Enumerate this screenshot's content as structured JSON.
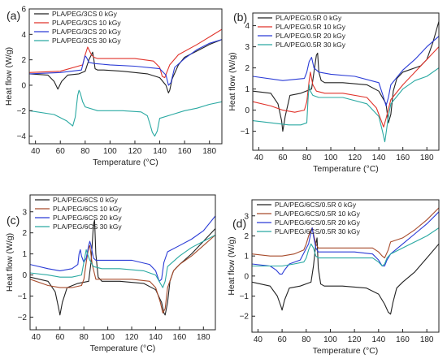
{
  "figure": {
    "panels": [
      "a",
      "b",
      "c",
      "d"
    ]
  },
  "chart_data": [
    {
      "panel_label": "(a)",
      "type": "line",
      "xlabel": "Temperature (°C)",
      "ylabel": "Heat flow (W/g)",
      "xlim": [
        35,
        190
      ],
      "ylim": [
        -4.6,
        6
      ],
      "xticks": [
        40,
        60,
        80,
        100,
        120,
        140,
        160,
        180
      ],
      "yticks": [
        -4,
        -2,
        0,
        2,
        4,
        6
      ],
      "legend_position": "top-left",
      "grid": false,
      "series": [
        {
          "name": "PLA/PEG/3CS 0 kGy",
          "color": "#222222",
          "x": [
            35,
            50,
            55,
            58,
            61,
            66,
            75,
            80,
            83,
            85,
            86,
            87,
            88,
            90,
            95,
            110,
            130,
            140,
            145,
            147,
            148,
            150,
            155,
            160,
            170,
            180,
            190
          ],
          "y": [
            0.9,
            0.8,
            0.3,
            -0.3,
            0.3,
            0.8,
            0.9,
            1.1,
            2.0,
            2.4,
            2.6,
            2.0,
            1.3,
            1.2,
            1.2,
            1.1,
            0.9,
            0.6,
            0.0,
            -0.6,
            -0.4,
            0.5,
            1.6,
            2.2,
            2.7,
            3.2,
            3.6
          ]
        },
        {
          "name": "PLA/PEG/3CS 10 kGy",
          "color": "#e0332b",
          "x": [
            35,
            60,
            78,
            80,
            82,
            83,
            85,
            87,
            90,
            100,
            120,
            135,
            140,
            142,
            144,
            148,
            155,
            170,
            180,
            190
          ],
          "y": [
            1.0,
            1.1,
            1.6,
            2.4,
            3.0,
            2.8,
            2.4,
            2.2,
            2.1,
            2.1,
            2.1,
            1.9,
            1.4,
            0.7,
            0.6,
            1.6,
            2.4,
            3.2,
            3.8,
            4.4
          ]
        },
        {
          "name": "PLA/PEG/3CS 20 kGy",
          "color": "#2a3bd6",
          "x": [
            35,
            60,
            77,
            79,
            80,
            81,
            83,
            88,
            100,
            120,
            140,
            145,
            147,
            149,
            152,
            160,
            170,
            180,
            190
          ],
          "y": [
            0.9,
            1.0,
            1.2,
            2.0,
            2.3,
            2.2,
            1.8,
            1.7,
            1.6,
            1.5,
            1.3,
            0.8,
            0.0,
            0.2,
            1.4,
            2.1,
            2.8,
            3.3,
            3.6
          ]
        },
        {
          "name": "PLA/PEG/3CS 30 kGy",
          "color": "#2aa9a2",
          "x": [
            35,
            55,
            65,
            70,
            72,
            74,
            75,
            76,
            78,
            80,
            90,
            110,
            125,
            130,
            132,
            134,
            136,
            138,
            140,
            150,
            160,
            170,
            180,
            190
          ],
          "y": [
            -2.0,
            -2.3,
            -2.8,
            -3.2,
            -2.5,
            -0.8,
            -0.4,
            -0.6,
            -1.3,
            -1.7,
            -2.0,
            -2.0,
            -2.1,
            -2.4,
            -3.0,
            -3.7,
            -4.0,
            -3.6,
            -2.6,
            -2.3,
            -2.0,
            -1.8,
            -1.5,
            -1.3
          ]
        }
      ]
    },
    {
      "panel_label": "(b)",
      "type": "line",
      "xlabel": "Temperature (°C)",
      "ylabel": "Heat flow (W/g)",
      "xlim": [
        35,
        190
      ],
      "ylim": [
        -1.9,
        4.6
      ],
      "xticks": [
        40,
        60,
        80,
        100,
        120,
        140,
        160,
        180
      ],
      "yticks": [
        -1,
        0,
        1,
        2,
        3,
        4
      ],
      "legend_position": "top-left",
      "grid": false,
      "series": [
        {
          "name": "PLA/PEG/0.5R 0 kGy",
          "color": "#222222",
          "x": [
            35,
            50,
            56,
            59,
            60,
            62,
            66,
            75,
            84,
            86,
            88,
            89,
            90,
            92,
            95,
            110,
            130,
            140,
            146,
            148,
            150,
            152,
            155,
            160,
            170,
            175,
            180,
            185,
            190
          ],
          "y": [
            0.9,
            0.8,
            0.3,
            -0.5,
            -1.0,
            -0.3,
            0.7,
            0.8,
            1.0,
            1.8,
            2.6,
            2.7,
            1.8,
            1.4,
            1.3,
            1.3,
            1.2,
            0.9,
            0.3,
            -0.6,
            -0.2,
            0.9,
            1.5,
            1.8,
            2.0,
            2.1,
            2.4,
            3.2,
            4.2
          ]
        },
        {
          "name": "PLA/PEG/0.5R 10 kGy",
          "color": "#e0332b",
          "x": [
            35,
            50,
            60,
            70,
            78,
            80,
            82,
            83,
            85,
            88,
            95,
            110,
            130,
            138,
            142,
            144,
            146,
            150,
            160,
            170,
            180,
            190
          ],
          "y": [
            0.4,
            0.2,
            0.0,
            -0.1,
            0.0,
            0.4,
            1.4,
            1.8,
            1.2,
            0.9,
            0.8,
            0.8,
            0.6,
            0.1,
            -0.5,
            -0.8,
            -0.4,
            0.5,
            1.2,
            1.8,
            2.4,
            3.0
          ]
        },
        {
          "name": "PLA/PEG/0.5R 20 kGy",
          "color": "#2a3bd6",
          "x": [
            35,
            60,
            78,
            80,
            82,
            84,
            86,
            90,
            100,
            120,
            140,
            144,
            146,
            148,
            150,
            160,
            170,
            180,
            190
          ],
          "y": [
            1.6,
            1.4,
            1.5,
            1.8,
            2.3,
            2.5,
            2.0,
            1.8,
            1.7,
            1.6,
            1.3,
            0.6,
            0.2,
            0.6,
            1.2,
            1.9,
            2.4,
            3.0,
            3.5
          ]
        },
        {
          "name": "PLA/PEG/0.5R 30 kGy",
          "color": "#2aa9a2",
          "x": [
            35,
            50,
            65,
            75,
            80,
            81,
            82,
            83,
            85,
            90,
            110,
            130,
            140,
            143,
            145,
            146,
            148,
            150,
            160,
            170,
            180,
            190
          ],
          "y": [
            -0.5,
            -0.6,
            -0.7,
            -0.7,
            -0.6,
            0.5,
            1.2,
            0.9,
            0.7,
            0.6,
            0.6,
            0.3,
            -0.3,
            -1.0,
            -1.5,
            -1.1,
            -0.3,
            0.3,
            1.0,
            1.4,
            1.6,
            2.0
          ]
        }
      ]
    },
    {
      "panel_label": "(c)",
      "type": "line",
      "xlabel": "Temperature (°C)",
      "ylabel": "Heat flow (W/g)",
      "xlim": [
        35,
        190
      ],
      "ylim": [
        -2.6,
        3.8
      ],
      "xticks": [
        40,
        60,
        80,
        100,
        120,
        140,
        160,
        180
      ],
      "yticks": [
        -2,
        -1,
        0,
        1,
        2,
        3
      ],
      "legend_position": "top-left",
      "grid": false,
      "series": [
        {
          "name": "PLA/PEG/6CS 0 kGy",
          "color": "#222222",
          "x": [
            35,
            50,
            56,
            59,
            60,
            62,
            66,
            75,
            84,
            86,
            88,
            89,
            90,
            92,
            95,
            110,
            130,
            140,
            145,
            147,
            148,
            150,
            152,
            155,
            160,
            170,
            180,
            190
          ],
          "y": [
            -0.1,
            -0.3,
            -0.8,
            -1.6,
            -1.9,
            -1.3,
            -0.6,
            -0.4,
            -0.3,
            0.6,
            2.4,
            2.6,
            1.0,
            -0.1,
            -0.3,
            -0.3,
            -0.4,
            -0.7,
            -1.3,
            -1.8,
            -1.9,
            -1.3,
            -0.3,
            0.2,
            0.5,
            1.0,
            1.6,
            2.2
          ]
        },
        {
          "name": "PLA/PEG/6CS 10 kGy",
          "color": "#a64a2a",
          "x": [
            35,
            50,
            60,
            70,
            78,
            80,
            82,
            84,
            85,
            87,
            90,
            100,
            120,
            135,
            140,
            144,
            146,
            148,
            150,
            155,
            160,
            170,
            180,
            190
          ],
          "y": [
            -0.2,
            -0.5,
            -0.6,
            -0.6,
            -0.5,
            -0.2,
            0.6,
            1.3,
            1.4,
            0.5,
            -0.2,
            -0.2,
            -0.2,
            -0.3,
            -0.6,
            -1.3,
            -1.8,
            -1.6,
            -0.6,
            0.2,
            0.5,
            0.9,
            1.4,
            1.9
          ]
        },
        {
          "name": "PLA/PEG/6CS 20 kGy",
          "color": "#2a3bd6",
          "x": [
            35,
            50,
            60,
            70,
            75,
            76,
            77,
            78,
            80,
            82,
            84,
            85,
            86,
            88,
            90,
            100,
            120,
            135,
            140,
            143,
            145,
            147,
            150,
            160,
            170,
            180,
            190
          ],
          "y": [
            0.5,
            0.3,
            0.2,
            0.3,
            0.5,
            1.0,
            1.2,
            0.9,
            0.6,
            0.8,
            1.4,
            1.6,
            1.4,
            0.8,
            0.7,
            0.7,
            0.7,
            0.5,
            0.2,
            -0.3,
            -0.2,
            0.6,
            1.1,
            1.4,
            1.7,
            2.1,
            2.8
          ]
        },
        {
          "name": "PLA/PEG/6CS 30 kGy",
          "color": "#2aa9a2",
          "x": [
            35,
            50,
            60,
            70,
            78,
            80,
            82,
            83,
            85,
            88,
            95,
            110,
            130,
            140,
            144,
            146,
            148,
            150,
            160,
            170,
            180,
            190
          ],
          "y": [
            0.1,
            0.0,
            -0.1,
            -0.1,
            0.0,
            0.6,
            1.2,
            1.0,
            0.7,
            0.4,
            0.3,
            0.3,
            0.2,
            0.0,
            -0.4,
            -0.6,
            -0.3,
            0.4,
            0.9,
            1.3,
            1.6,
            1.9
          ]
        }
      ]
    },
    {
      "panel_label": "(d)",
      "type": "line",
      "xlabel": "Temperature (°C)",
      "ylabel": "Heat flow (W/g)",
      "xlim": [
        35,
        190
      ],
      "ylim": [
        -2.8,
        3.8
      ],
      "xticks": [
        40,
        60,
        80,
        100,
        120,
        140,
        160,
        180
      ],
      "yticks": [
        -2,
        -1,
        0,
        1,
        2,
        3
      ],
      "legend_position": "top-left",
      "grid": false,
      "series": [
        {
          "name": "PLA/PEG/6CS/0.5R 0 kGy",
          "color": "#222222",
          "x": [
            35,
            50,
            56,
            59,
            60,
            62,
            66,
            75,
            84,
            86,
            88,
            89,
            90,
            92,
            95,
            110,
            130,
            140,
            145,
            148,
            150,
            152,
            155,
            160,
            170,
            180,
            190
          ],
          "y": [
            -0.3,
            -0.5,
            -1.0,
            -1.5,
            -1.7,
            -1.2,
            -0.6,
            -0.5,
            -0.3,
            0.5,
            1.6,
            1.9,
            0.4,
            -0.4,
            -0.5,
            -0.5,
            -0.6,
            -0.9,
            -1.4,
            -1.8,
            -1.9,
            -1.3,
            -0.6,
            -0.3,
            0.2,
            0.9,
            1.6
          ]
        },
        {
          "name": "PLA/PEG/6CS/0.5R 10 kGy",
          "color": "#a64a2a",
          "x": [
            35,
            50,
            60,
            70,
            78,
            80,
            82,
            84,
            85,
            86,
            88,
            90,
            100,
            120,
            135,
            140,
            143,
            145,
            148,
            150,
            160,
            170,
            180,
            190
          ],
          "y": [
            1.1,
            1.0,
            1.0,
            1.1,
            1.3,
            1.6,
            2.0,
            2.3,
            2.4,
            2.1,
            1.6,
            1.4,
            1.4,
            1.4,
            1.4,
            1.2,
            1.0,
            0.9,
            1.3,
            1.7,
            1.9,
            2.3,
            2.8,
            3.4
          ]
        },
        {
          "name": "PLA/PEG/6CS/0.5R 20 kGy",
          "color": "#2a3bd6",
          "x": [
            35,
            50,
            55,
            58,
            60,
            62,
            66,
            75,
            82,
            84,
            85,
            86,
            88,
            90,
            100,
            120,
            135,
            140,
            143,
            145,
            147,
            150,
            160,
            170,
            180,
            190
          ],
          "y": [
            0.6,
            0.5,
            0.3,
            0.1,
            0.1,
            0.3,
            0.6,
            0.8,
            1.6,
            2.2,
            2.4,
            2.0,
            1.4,
            1.2,
            1.2,
            1.2,
            1.1,
            0.8,
            0.5,
            0.5,
            0.8,
            1.1,
            1.6,
            2.1,
            2.6,
            3.2
          ]
        },
        {
          "name": "PLA/PEG/6CS/0.5R 30 kGy",
          "color": "#2aa9a2",
          "x": [
            35,
            50,
            60,
            70,
            78,
            80,
            82,
            84,
            86,
            88,
            90,
            100,
            120,
            135,
            140,
            143,
            145,
            147,
            150,
            160,
            170,
            180,
            190
          ],
          "y": [
            0.5,
            0.5,
            0.5,
            0.6,
            0.7,
            0.9,
            1.3,
            1.6,
            1.4,
            1.0,
            0.9,
            0.9,
            0.9,
            0.9,
            0.7,
            0.5,
            0.6,
            0.9,
            1.1,
            1.4,
            1.7,
            2.0,
            2.4
          ]
        }
      ]
    }
  ]
}
